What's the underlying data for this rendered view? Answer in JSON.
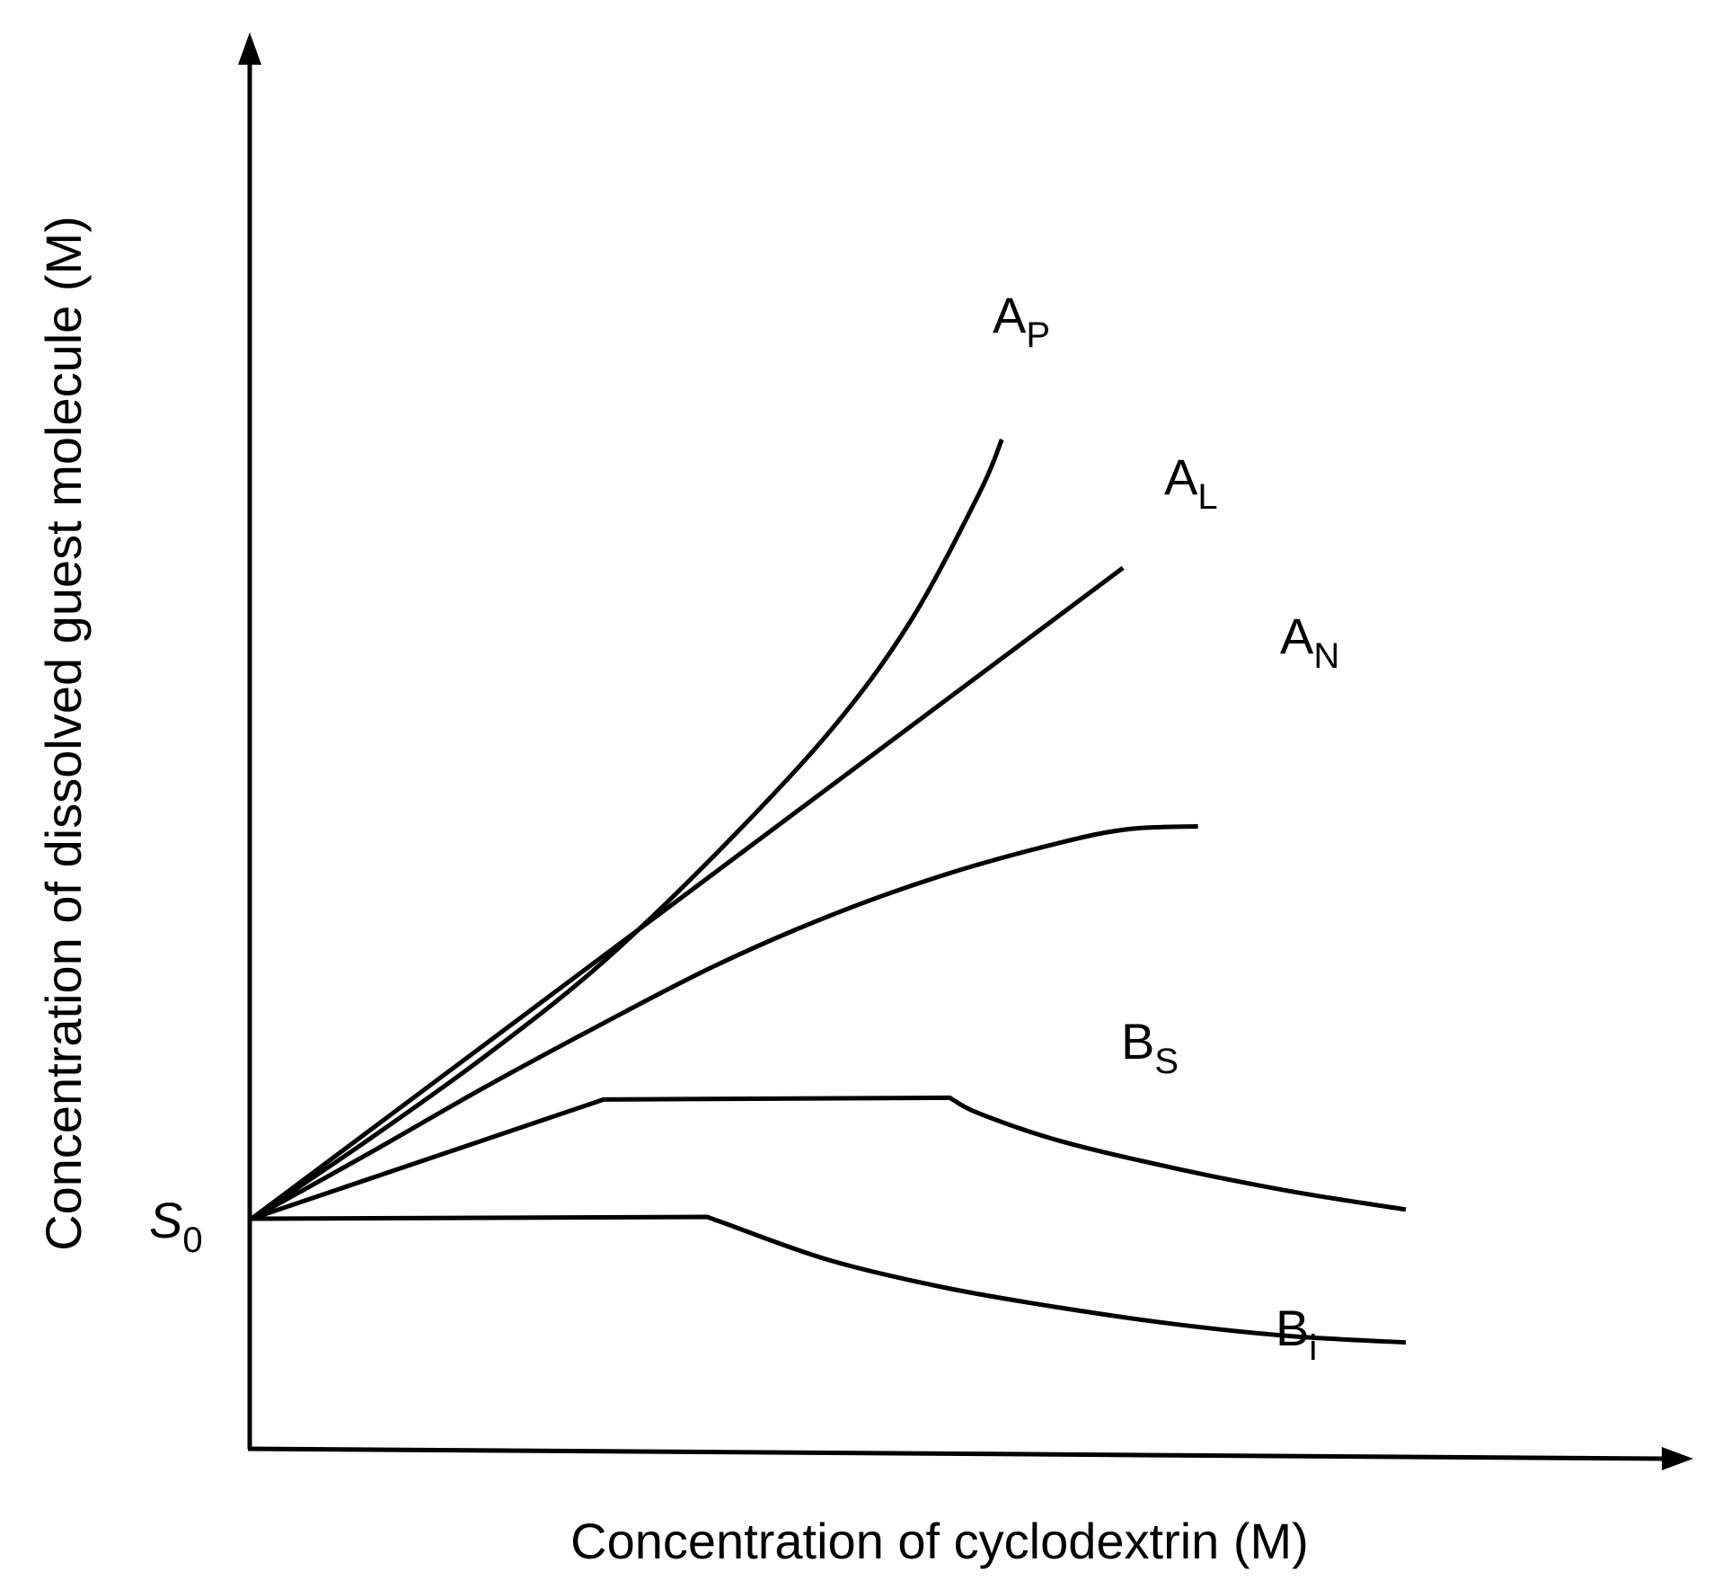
{
  "chart_data": {
    "type": "line",
    "title": "",
    "xlabel": "Concentration of cyclodextrin (M)",
    "ylabel": "Concentration of dissolved guest molecule (M)",
    "xlim": [
      0,
      10
    ],
    "ylim": [
      -1.5,
      10
    ],
    "origin_label": {
      "base": "S",
      "sub": "0",
      "y": 0
    },
    "series": [
      {
        "id": "AP",
        "base": "A",
        "sub": "P",
        "points": [
          [
            0,
            0
          ],
          [
            1,
            0.85
          ],
          [
            2,
            1.75
          ],
          [
            3,
            2.75
          ],
          [
            4,
            3.95
          ],
          [
            5,
            5.3
          ],
          [
            5.7,
            6.5
          ],
          [
            6.3,
            7.9
          ],
          [
            6.5,
            8.5
          ]
        ]
      },
      {
        "id": "AL",
        "base": "A",
        "sub": "L",
        "points": [
          [
            0,
            0
          ],
          [
            7.55,
            7.1
          ]
        ]
      },
      {
        "id": "AN",
        "base": "A",
        "sub": "N",
        "points": [
          [
            0,
            0
          ],
          [
            1,
            0.7
          ],
          [
            2,
            1.42
          ],
          [
            3,
            2.1
          ],
          [
            4,
            2.75
          ],
          [
            5,
            3.3
          ],
          [
            6,
            3.75
          ],
          [
            7,
            4.1
          ],
          [
            7.6,
            4.25
          ],
          [
            8.2,
            4.28
          ]
        ]
      },
      {
        "id": "BS",
        "base": "B",
        "sub": "S",
        "points": [
          [
            0,
            0
          ],
          [
            3.05,
            1.3
          ],
          [
            6.05,
            1.32
          ],
          [
            6.3,
            1.15
          ],
          [
            7,
            0.85
          ],
          [
            8,
            0.55
          ],
          [
            9,
            0.3
          ],
          [
            10,
            0.1
          ]
        ]
      },
      {
        "id": "Bi",
        "base": "B",
        "sub": "i",
        "points": [
          [
            0,
            0
          ],
          [
            3.95,
            0.02
          ],
          [
            4.1,
            -0.05
          ],
          [
            5,
            -0.45
          ],
          [
            6,
            -0.75
          ],
          [
            7,
            -0.97
          ],
          [
            8,
            -1.15
          ],
          [
            9,
            -1.28
          ],
          [
            10,
            -1.35
          ]
        ]
      }
    ]
  },
  "colors": {
    "line": "#000000",
    "background": "#ffffff"
  }
}
